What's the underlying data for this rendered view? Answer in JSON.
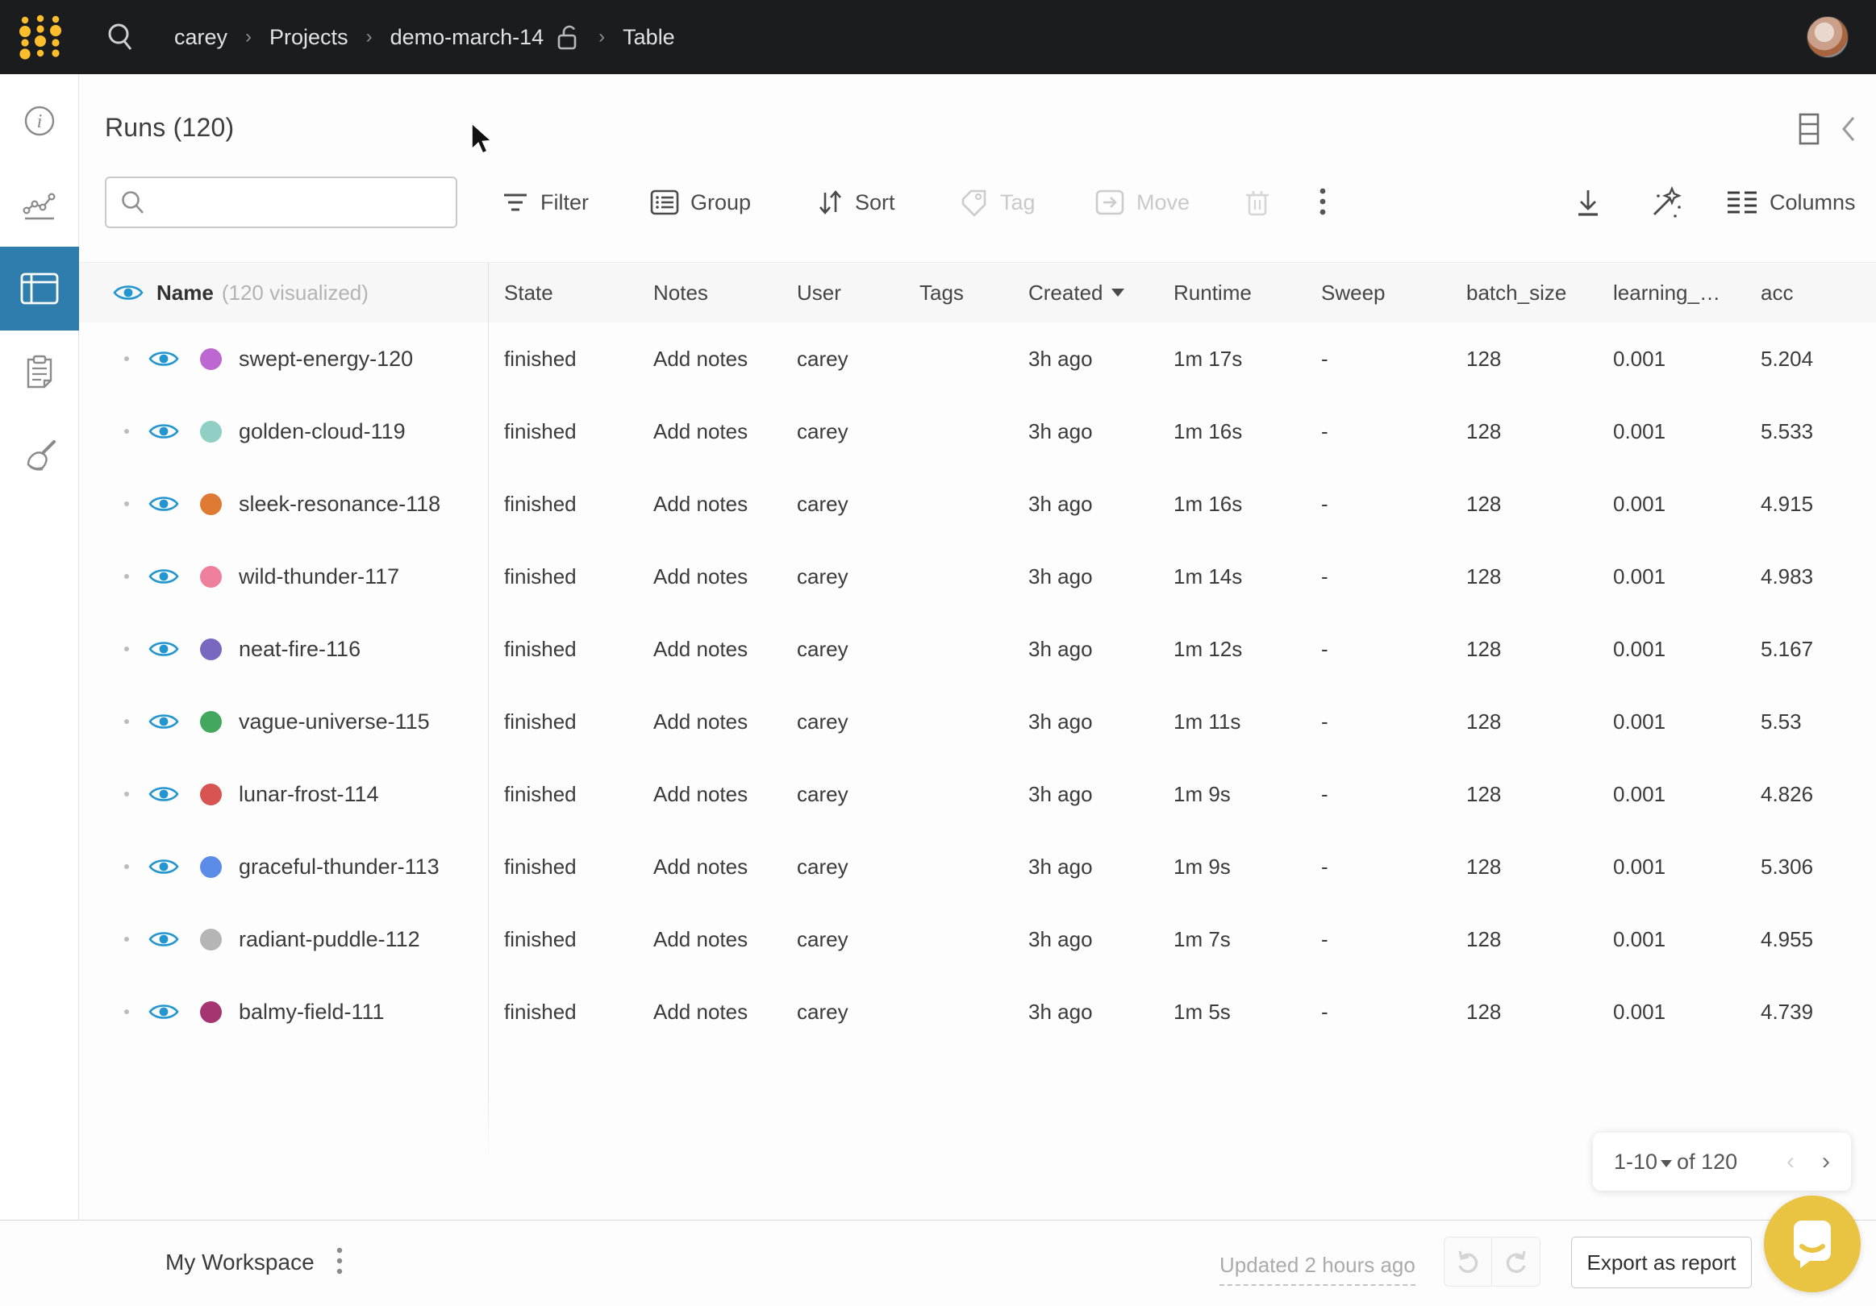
{
  "topbar": {
    "breadcrumb": {
      "user": "carey",
      "projects": "Projects",
      "project": "demo-march-14",
      "page": "Table"
    },
    "icons": [
      "wandb-logo",
      "search-icon",
      "unlock-icon",
      "avatar"
    ]
  },
  "sidebar": {
    "items": [
      {
        "icon": "info-icon",
        "active": false
      },
      {
        "icon": "charts-icon",
        "active": false
      },
      {
        "icon": "table-icon",
        "active": true
      },
      {
        "icon": "clipboard-icon",
        "active": false
      },
      {
        "icon": "broom-icon",
        "active": false
      }
    ]
  },
  "page": {
    "title": "Runs (120)"
  },
  "toolbar": {
    "search": {
      "placeholder": "",
      "value": ""
    },
    "filter": {
      "label": "Filter",
      "enabled": true
    },
    "group": {
      "label": "Group",
      "enabled": true
    },
    "sort": {
      "label": "Sort",
      "enabled": true
    },
    "tag": {
      "label": "Tag",
      "enabled": false
    },
    "move": {
      "label": "Move",
      "enabled": false
    },
    "delete": {
      "enabled": false
    },
    "more": {
      "enabled": true
    },
    "columns": {
      "label": "Columns"
    }
  },
  "table": {
    "name_header": "Name",
    "name_sub": "(120 visualized)",
    "columns": [
      {
        "label": "State"
      },
      {
        "label": "Notes"
      },
      {
        "label": "User"
      },
      {
        "label": "Tags"
      },
      {
        "label": "Created",
        "sort": true
      },
      {
        "label": "Runtime"
      },
      {
        "label": "Sweep"
      },
      {
        "label": "batch_size"
      },
      {
        "label": "learning_…"
      },
      {
        "label": "acc"
      }
    ],
    "rows": [
      {
        "name": "swept-energy-120",
        "color": "#bd68d0",
        "state": "finished",
        "notes": "Add notes",
        "user": "carey",
        "tags": "",
        "created": "3h ago",
        "runtime": "1m 17s",
        "sweep": "-",
        "batch_size": "128",
        "learning_rate": "0.001",
        "acc": "5.204"
      },
      {
        "name": "golden-cloud-119",
        "color": "#8fcfc4",
        "state": "finished",
        "notes": "Add notes",
        "user": "carey",
        "tags": "",
        "created": "3h ago",
        "runtime": "1m 16s",
        "sweep": "-",
        "batch_size": "128",
        "learning_rate": "0.001",
        "acc": "5.533"
      },
      {
        "name": "sleek-resonance-118",
        "color": "#df7a33",
        "state": "finished",
        "notes": "Add notes",
        "user": "carey",
        "tags": "",
        "created": "3h ago",
        "runtime": "1m 16s",
        "sweep": "-",
        "batch_size": "128",
        "learning_rate": "0.001",
        "acc": "4.915"
      },
      {
        "name": "wild-thunder-117",
        "color": "#ee7f9d",
        "state": "finished",
        "notes": "Add notes",
        "user": "carey",
        "tags": "",
        "created": "3h ago",
        "runtime": "1m 14s",
        "sweep": "-",
        "batch_size": "128",
        "learning_rate": "0.001",
        "acc": "4.983"
      },
      {
        "name": "neat-fire-116",
        "color": "#7a68c0",
        "state": "finished",
        "notes": "Add notes",
        "user": "carey",
        "tags": "",
        "created": "3h ago",
        "runtime": "1m 12s",
        "sweep": "-",
        "batch_size": "128",
        "learning_rate": "0.001",
        "acc": "5.167"
      },
      {
        "name": "vague-universe-115",
        "color": "#43a75e",
        "state": "finished",
        "notes": "Add notes",
        "user": "carey",
        "tags": "",
        "created": "3h ago",
        "runtime": "1m 11s",
        "sweep": "-",
        "batch_size": "128",
        "learning_rate": "0.001",
        "acc": "5.53"
      },
      {
        "name": "lunar-frost-114",
        "color": "#d85452",
        "state": "finished",
        "notes": "Add notes",
        "user": "carey",
        "tags": "",
        "created": "3h ago",
        "runtime": "1m 9s",
        "sweep": "-",
        "batch_size": "128",
        "learning_rate": "0.001",
        "acc": "4.826"
      },
      {
        "name": "graceful-thunder-113",
        "color": "#5c8ce8",
        "state": "finished",
        "notes": "Add notes",
        "user": "carey",
        "tags": "",
        "created": "3h ago",
        "runtime": "1m 9s",
        "sweep": "-",
        "batch_size": "128",
        "learning_rate": "0.001",
        "acc": "5.306"
      },
      {
        "name": "radiant-puddle-112",
        "color": "#b5b5b5",
        "state": "finished",
        "notes": "Add notes",
        "user": "carey",
        "tags": "",
        "created": "3h ago",
        "runtime": "1m 7s",
        "sweep": "-",
        "batch_size": "128",
        "learning_rate": "0.001",
        "acc": "4.955"
      },
      {
        "name": "balmy-field-111",
        "color": "#a43571",
        "state": "finished",
        "notes": "Add notes",
        "user": "carey",
        "tags": "",
        "created": "3h ago",
        "runtime": "1m 5s",
        "sweep": "-",
        "batch_size": "128",
        "learning_rate": "0.001",
        "acc": "4.739"
      }
    ]
  },
  "pagination": {
    "range": "1-10",
    "of": "of 120"
  },
  "footer": {
    "workspace": "My Workspace",
    "updated": "Updated 2 hours ago",
    "export_label": "Export as report"
  },
  "colors": {
    "accent_blue": "#2496cf",
    "active_nav": "#2e7dad",
    "topbar_bg": "#1b1c1e",
    "intercom_yellow": "#e9c342",
    "logo_yellow": "#fcbe2c"
  }
}
